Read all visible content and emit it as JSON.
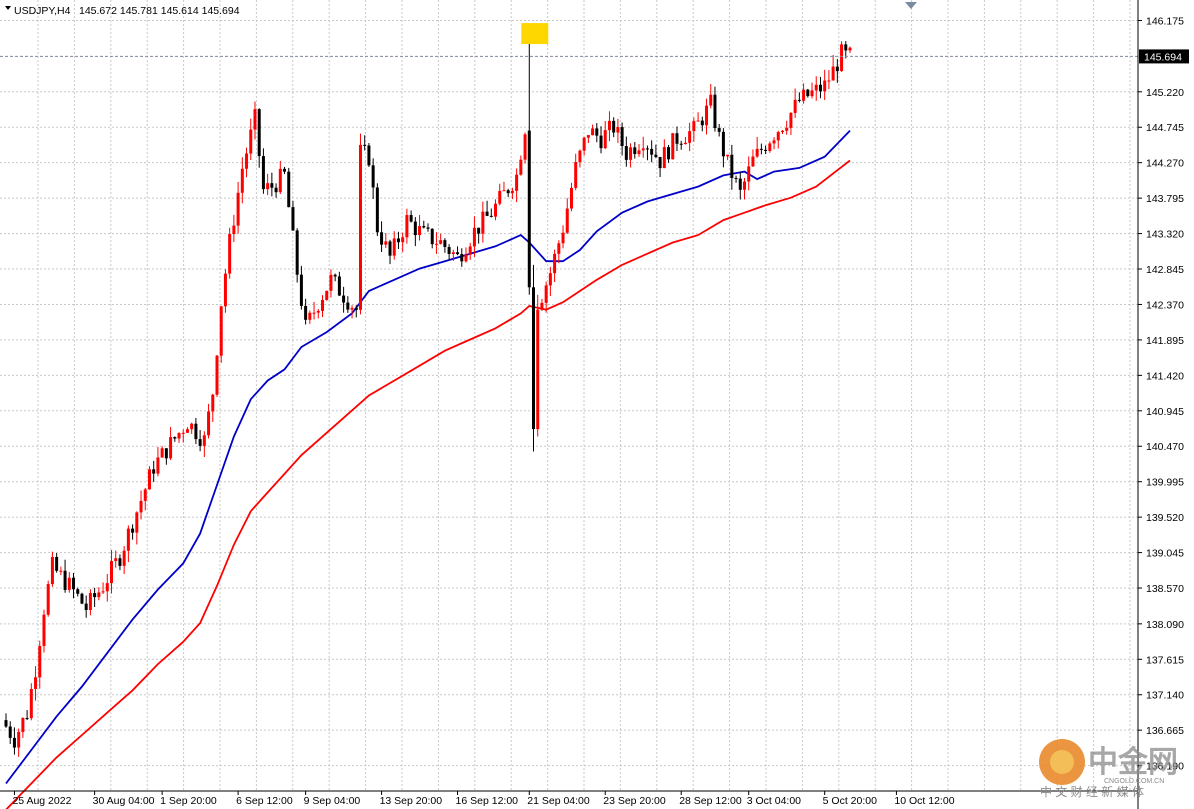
{
  "header": {
    "symbol": "USDJPY,H4",
    "ohlc": "145.672 145.781 145.614 145.694"
  },
  "colors": {
    "bull": "#ff0000",
    "bear": "#000000",
    "ma_fast": "#0000c8",
    "ma_slow": "#ff0000",
    "grid": "#c8c8c8",
    "highlight": "#ffd700"
  },
  "watermark": {
    "brand_cn": "中金网",
    "domain": "CNGOLD.COM.CN",
    "tagline": "中 文 财 经 新 媒 体"
  },
  "chart_data": {
    "type": "candlestick",
    "symbol": "USDJPY",
    "timeframe": "H4",
    "grid": true,
    "current_price": 145.694,
    "y_range": [
      135.85,
      146.45
    ],
    "y_ticks": [
      146.175,
      145.694,
      145.22,
      144.745,
      144.27,
      143.795,
      143.32,
      142.845,
      142.37,
      141.895,
      141.42,
      140.945,
      140.47,
      139.995,
      139.52,
      139.045,
      138.57,
      138.09,
      137.615,
      137.14,
      136.665,
      136.19
    ],
    "y_tick_labels": [
      "146.175",
      "145.694",
      "145.220",
      "144.745",
      "144.270",
      "143.795",
      "143.320",
      "142.845",
      "142.370",
      "141.895",
      "141.420",
      "140.945",
      "140.470",
      "139.995",
      "139.520",
      "139.045",
      "138.570",
      "138.090",
      "137.615",
      "137.140",
      "136.665",
      "136.190"
    ],
    "x_labels": [
      {
        "label": "25 Aug 2022",
        "bar": 2
      },
      {
        "label": "30 Aug 04:00",
        "bar": 21
      },
      {
        "label": "1 Sep 20:00",
        "bar": 37
      },
      {
        "label": "6 Sep 12:00",
        "bar": 55
      },
      {
        "label": "9 Sep 04:00",
        "bar": 71
      },
      {
        "label": "13 Sep 20:00",
        "bar": 89
      },
      {
        "label": "16 Sep 12:00",
        "bar": 107
      },
      {
        "label": "21 Sep 04:00",
        "bar": 124
      },
      {
        "label": "23 Sep 20:00",
        "bar": 142
      },
      {
        "label": "28 Sep 12:00",
        "bar": 160
      },
      {
        "label": "3 Oct 04:00",
        "bar": 176
      },
      {
        "label": "5 Oct 20:00",
        "bar": 194
      },
      {
        "label": "10 Oct 12:00",
        "bar": 211
      }
    ],
    "price_waypoints": [
      [
        0,
        136.8
      ],
      [
        3,
        136.55
      ],
      [
        6,
        136.9
      ],
      [
        8,
        137.5
      ],
      [
        10,
        138.3
      ],
      [
        12,
        138.85
      ],
      [
        16,
        138.6
      ],
      [
        20,
        138.3
      ],
      [
        24,
        138.6
      ],
      [
        28,
        139.0
      ],
      [
        32,
        139.6
      ],
      [
        36,
        140.2
      ],
      [
        40,
        140.5
      ],
      [
        44,
        140.8
      ],
      [
        48,
        140.55
      ],
      [
        50,
        141.2
      ],
      [
        52,
        142.4
      ],
      [
        54,
        143.2
      ],
      [
        57,
        144.2
      ],
      [
        60,
        144.85
      ],
      [
        62,
        143.9
      ],
      [
        64,
        143.95
      ],
      [
        67,
        144.1
      ],
      [
        70,
        142.8
      ],
      [
        72,
        142.05
      ],
      [
        75,
        142.4
      ],
      [
        78,
        142.7
      ],
      [
        81,
        142.5
      ],
      [
        84,
        142.3
      ],
      [
        85,
        144.4
      ],
      [
        87,
        144.35
      ],
      [
        89,
        143.4
      ],
      [
        92,
        143.0
      ],
      [
        96,
        143.5
      ],
      [
        100,
        143.3
      ],
      [
        104,
        143.2
      ],
      [
        108,
        143.0
      ],
      [
        112,
        143.35
      ],
      [
        116,
        143.6
      ],
      [
        119,
        143.85
      ],
      [
        122,
        144.1
      ],
      [
        124,
        144.75
      ],
      [
        125,
        142.7
      ],
      [
        126,
        140.7
      ],
      [
        127,
        142.4
      ],
      [
        128,
        142.5
      ],
      [
        130,
        142.8
      ],
      [
        133,
        143.4
      ],
      [
        136,
        144.2
      ],
      [
        139,
        144.7
      ],
      [
        142,
        144.6
      ],
      [
        145,
        144.75
      ],
      [
        148,
        144.4
      ],
      [
        152,
        144.6
      ],
      [
        156,
        144.3
      ],
      [
        160,
        144.6
      ],
      [
        164,
        144.7
      ],
      [
        168,
        145.05
      ],
      [
        170,
        144.6
      ],
      [
        172,
        144.25
      ],
      [
        175,
        143.85
      ],
      [
        178,
        144.3
      ],
      [
        182,
        144.6
      ],
      [
        186,
        144.85
      ],
      [
        189,
        145.1
      ],
      [
        192,
        145.2
      ],
      [
        195,
        145.3
      ],
      [
        197,
        145.5
      ],
      [
        199,
        145.72
      ],
      [
        200,
        145.694
      ]
    ],
    "special_candles": [
      {
        "bar": 124,
        "open": 144.7,
        "high": 145.96,
        "low": 142.5,
        "close": 142.6
      },
      {
        "bar": 125,
        "open": 142.6,
        "high": 142.9,
        "low": 140.4,
        "close": 140.7
      },
      {
        "bar": 126,
        "open": 140.7,
        "high": 142.5,
        "low": 140.6,
        "close": 142.3
      }
    ],
    "series": [
      {
        "name": "",
        "type": "line",
        "color": "#0000c8",
        "points": [
          [
            0,
            135.95
          ],
          [
            6,
            136.4
          ],
          [
            12,
            136.85
          ],
          [
            18,
            137.25
          ],
          [
            24,
            137.7
          ],
          [
            30,
            138.15
          ],
          [
            36,
            138.55
          ],
          [
            42,
            138.9
          ],
          [
            46,
            139.3
          ],
          [
            50,
            139.95
          ],
          [
            54,
            140.6
          ],
          [
            58,
            141.1
          ],
          [
            62,
            141.35
          ],
          [
            66,
            141.5
          ],
          [
            70,
            141.8
          ],
          [
            76,
            142.0
          ],
          [
            82,
            142.25
          ],
          [
            86,
            142.55
          ],
          [
            92,
            142.7
          ],
          [
            98,
            142.85
          ],
          [
            104,
            142.95
          ],
          [
            110,
            143.05
          ],
          [
            116,
            143.15
          ],
          [
            122,
            143.3
          ],
          [
            124,
            143.2
          ],
          [
            128,
            142.95
          ],
          [
            132,
            142.95
          ],
          [
            136,
            143.1
          ],
          [
            140,
            143.35
          ],
          [
            146,
            143.6
          ],
          [
            152,
            143.75
          ],
          [
            158,
            143.85
          ],
          [
            164,
            143.95
          ],
          [
            170,
            144.1
          ],
          [
            175,
            144.15
          ],
          [
            178,
            144.05
          ],
          [
            182,
            144.15
          ],
          [
            188,
            144.2
          ],
          [
            194,
            144.35
          ],
          [
            200,
            144.7
          ]
        ]
      },
      {
        "name": "",
        "type": "line",
        "color": "#ff0000",
        "points": [
          [
            0,
            135.6
          ],
          [
            6,
            135.95
          ],
          [
            12,
            136.3
          ],
          [
            18,
            136.6
          ],
          [
            24,
            136.9
          ],
          [
            30,
            137.2
          ],
          [
            36,
            137.55
          ],
          [
            42,
            137.85
          ],
          [
            46,
            138.1
          ],
          [
            50,
            138.6
          ],
          [
            54,
            139.15
          ],
          [
            58,
            139.6
          ],
          [
            62,
            139.85
          ],
          [
            66,
            140.1
          ],
          [
            70,
            140.35
          ],
          [
            76,
            140.65
          ],
          [
            82,
            140.95
          ],
          [
            86,
            141.15
          ],
          [
            92,
            141.35
          ],
          [
            98,
            141.55
          ],
          [
            104,
            141.75
          ],
          [
            110,
            141.9
          ],
          [
            116,
            142.05
          ],
          [
            122,
            142.25
          ],
          [
            124,
            142.35
          ],
          [
            128,
            142.3
          ],
          [
            132,
            142.4
          ],
          [
            136,
            142.55
          ],
          [
            140,
            142.7
          ],
          [
            146,
            142.9
          ],
          [
            152,
            143.05
          ],
          [
            158,
            143.2
          ],
          [
            164,
            143.3
          ],
          [
            170,
            143.5
          ],
          [
            175,
            143.6
          ],
          [
            180,
            143.7
          ],
          [
            186,
            143.8
          ],
          [
            192,
            143.95
          ],
          [
            200,
            144.3
          ]
        ]
      }
    ],
    "annotations": [
      {
        "type": "highlight-box",
        "bar": 124,
        "price": 145.98
      },
      {
        "type": "horizontal-line",
        "price": 145.694
      }
    ]
  }
}
